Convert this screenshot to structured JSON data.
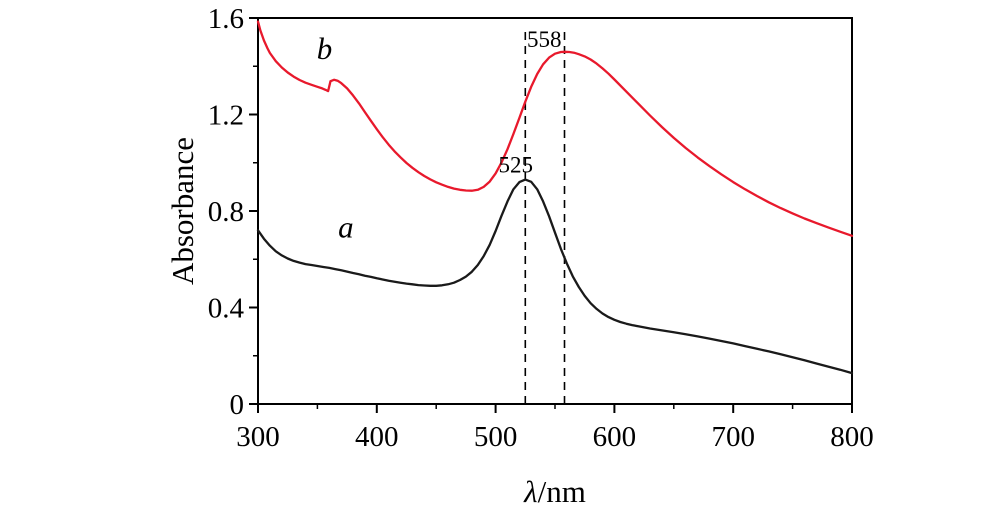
{
  "figure": {
    "background": "#ffffff",
    "axis_color": "#000000"
  },
  "chart_data": {
    "type": "line",
    "title": "",
    "xlabel": "λ/nm",
    "xlabel_italic": "λ",
    "xlabel_rest": "/nm",
    "ylabel": "Absorbance",
    "xlim": [
      300,
      800
    ],
    "ylim": [
      0,
      1.6
    ],
    "grid": false,
    "frame": "box",
    "legend_position": "none",
    "x_ticks": [
      300,
      400,
      500,
      600,
      700,
      800
    ],
    "x_minor_ticks": [
      350,
      450,
      550,
      650,
      750
    ],
    "y_ticks": [
      0,
      0.4,
      0.8,
      1.2,
      1.6
    ],
    "y_tick_labels": [
      "0",
      "0.4",
      "0.8",
      "1.2",
      "1.6"
    ],
    "y_minor_ticks": [
      0.2,
      0.6,
      1.0,
      1.4
    ],
    "dashed_guides": [
      {
        "x": 525,
        "y_bottom": 0,
        "y_top": 1.56
      },
      {
        "x": 558,
        "y_bottom": 0,
        "y_top": 1.56
      }
    ],
    "peak_annotations": [
      {
        "text": "525",
        "x": 517,
        "y": 0.96
      },
      {
        "text": "558",
        "x": 541,
        "y": 1.48
      }
    ],
    "series": [
      {
        "name": "a",
        "color": "#1a1a1a",
        "label": {
          "text": "a",
          "x": 374,
          "y": 0.69
        },
        "points": [
          [
            300,
            0.72
          ],
          [
            305,
            0.685
          ],
          [
            310,
            0.656
          ],
          [
            315,
            0.633
          ],
          [
            320,
            0.616
          ],
          [
            325,
            0.603
          ],
          [
            330,
            0.593
          ],
          [
            335,
            0.586
          ],
          [
            340,
            0.58
          ],
          [
            345,
            0.576
          ],
          [
            350,
            0.572
          ],
          [
            355,
            0.568
          ],
          [
            360,
            0.564
          ],
          [
            365,
            0.559
          ],
          [
            370,
            0.554
          ],
          [
            375,
            0.549
          ],
          [
            380,
            0.543
          ],
          [
            385,
            0.538
          ],
          [
            390,
            0.532
          ],
          [
            395,
            0.527
          ],
          [
            400,
            0.521
          ],
          [
            405,
            0.516
          ],
          [
            410,
            0.511
          ],
          [
            415,
            0.507
          ],
          [
            420,
            0.503
          ],
          [
            425,
            0.499
          ],
          [
            430,
            0.496
          ],
          [
            435,
            0.493
          ],
          [
            440,
            0.491
          ],
          [
            445,
            0.49
          ],
          [
            450,
            0.49
          ],
          [
            455,
            0.492
          ],
          [
            460,
            0.496
          ],
          [
            465,
            0.503
          ],
          [
            470,
            0.514
          ],
          [
            475,
            0.528
          ],
          [
            480,
            0.548
          ],
          [
            485,
            0.576
          ],
          [
            490,
            0.613
          ],
          [
            495,
            0.66
          ],
          [
            500,
            0.717
          ],
          [
            505,
            0.78
          ],
          [
            510,
            0.84
          ],
          [
            515,
            0.89
          ],
          [
            520,
            0.92
          ],
          [
            525,
            0.93
          ],
          [
            530,
            0.921
          ],
          [
            535,
            0.89
          ],
          [
            540,
            0.84
          ],
          [
            545,
            0.778
          ],
          [
            550,
            0.71
          ],
          [
            555,
            0.643
          ],
          [
            560,
            0.582
          ],
          [
            565,
            0.529
          ],
          [
            570,
            0.485
          ],
          [
            575,
            0.448
          ],
          [
            580,
            0.418
          ],
          [
            585,
            0.394
          ],
          [
            590,
            0.375
          ],
          [
            595,
            0.36
          ],
          [
            600,
            0.349
          ],
          [
            605,
            0.34
          ],
          [
            610,
            0.333
          ],
          [
            615,
            0.327
          ],
          [
            620,
            0.322
          ],
          [
            630,
            0.313
          ],
          [
            640,
            0.305
          ],
          [
            650,
            0.297
          ],
          [
            660,
            0.289
          ],
          [
            670,
            0.28
          ],
          [
            680,
            0.271
          ],
          [
            690,
            0.261
          ],
          [
            700,
            0.251
          ],
          [
            710,
            0.24
          ],
          [
            720,
            0.229
          ],
          [
            730,
            0.218
          ],
          [
            740,
            0.206
          ],
          [
            750,
            0.194
          ],
          [
            760,
            0.181
          ],
          [
            770,
            0.168
          ],
          [
            780,
            0.155
          ],
          [
            790,
            0.142
          ],
          [
            800,
            0.128
          ]
        ]
      },
      {
        "name": "b",
        "color": "#e8192c",
        "label": {
          "text": "b",
          "x": 356,
          "y": 1.43
        },
        "points": [
          [
            300,
            1.585
          ],
          [
            302,
            1.548
          ],
          [
            305,
            1.507
          ],
          [
            308,
            1.474
          ],
          [
            310,
            1.455
          ],
          [
            315,
            1.421
          ],
          [
            320,
            1.395
          ],
          [
            325,
            1.374
          ],
          [
            330,
            1.357
          ],
          [
            335,
            1.343
          ],
          [
            340,
            1.332
          ],
          [
            345,
            1.323
          ],
          [
            350,
            1.315
          ],
          [
            354,
            1.308
          ],
          [
            357,
            1.302
          ],
          [
            359,
            1.297
          ],
          [
            361,
            1.338
          ],
          [
            364,
            1.344
          ],
          [
            367,
            1.34
          ],
          [
            370,
            1.33
          ],
          [
            375,
            1.308
          ],
          [
            380,
            1.279
          ],
          [
            385,
            1.246
          ],
          [
            390,
            1.21
          ],
          [
            395,
            1.174
          ],
          [
            400,
            1.139
          ],
          [
            405,
            1.106
          ],
          [
            410,
            1.075
          ],
          [
            415,
            1.047
          ],
          [
            420,
            1.022
          ],
          [
            425,
            0.999
          ],
          [
            430,
            0.979
          ],
          [
            435,
            0.961
          ],
          [
            440,
            0.945
          ],
          [
            445,
            0.931
          ],
          [
            450,
            0.919
          ],
          [
            455,
            0.909
          ],
          [
            460,
            0.9
          ],
          [
            465,
            0.893
          ],
          [
            470,
            0.888
          ],
          [
            475,
            0.885
          ],
          [
            480,
            0.884
          ],
          [
            485,
            0.888
          ],
          [
            490,
            0.9
          ],
          [
            495,
            0.922
          ],
          [
            500,
            0.956
          ],
          [
            505,
            1.001
          ],
          [
            510,
            1.056
          ],
          [
            515,
            1.119
          ],
          [
            520,
            1.186
          ],
          [
            525,
            1.253
          ],
          [
            530,
            1.315
          ],
          [
            535,
            1.368
          ],
          [
            540,
            1.408
          ],
          [
            545,
            1.436
          ],
          [
            550,
            1.452
          ],
          [
            555,
            1.459
          ],
          [
            558,
            1.46
          ],
          [
            562,
            1.459
          ],
          [
            566,
            1.456
          ],
          [
            570,
            1.45
          ],
          [
            575,
            1.441
          ],
          [
            580,
            1.428
          ],
          [
            585,
            1.411
          ],
          [
            590,
            1.391
          ],
          [
            595,
            1.369
          ],
          [
            600,
            1.345
          ],
          [
            610,
            1.295
          ],
          [
            620,
            1.245
          ],
          [
            630,
            1.196
          ],
          [
            640,
            1.148
          ],
          [
            650,
            1.103
          ],
          [
            660,
            1.061
          ],
          [
            670,
            1.022
          ],
          [
            680,
            0.986
          ],
          [
            690,
            0.952
          ],
          [
            700,
            0.92
          ],
          [
            710,
            0.89
          ],
          [
            720,
            0.862
          ],
          [
            730,
            0.836
          ],
          [
            740,
            0.812
          ],
          [
            750,
            0.79
          ],
          [
            760,
            0.769
          ],
          [
            770,
            0.75
          ],
          [
            780,
            0.732
          ],
          [
            790,
            0.714
          ],
          [
            800,
            0.697
          ]
        ]
      }
    ]
  }
}
